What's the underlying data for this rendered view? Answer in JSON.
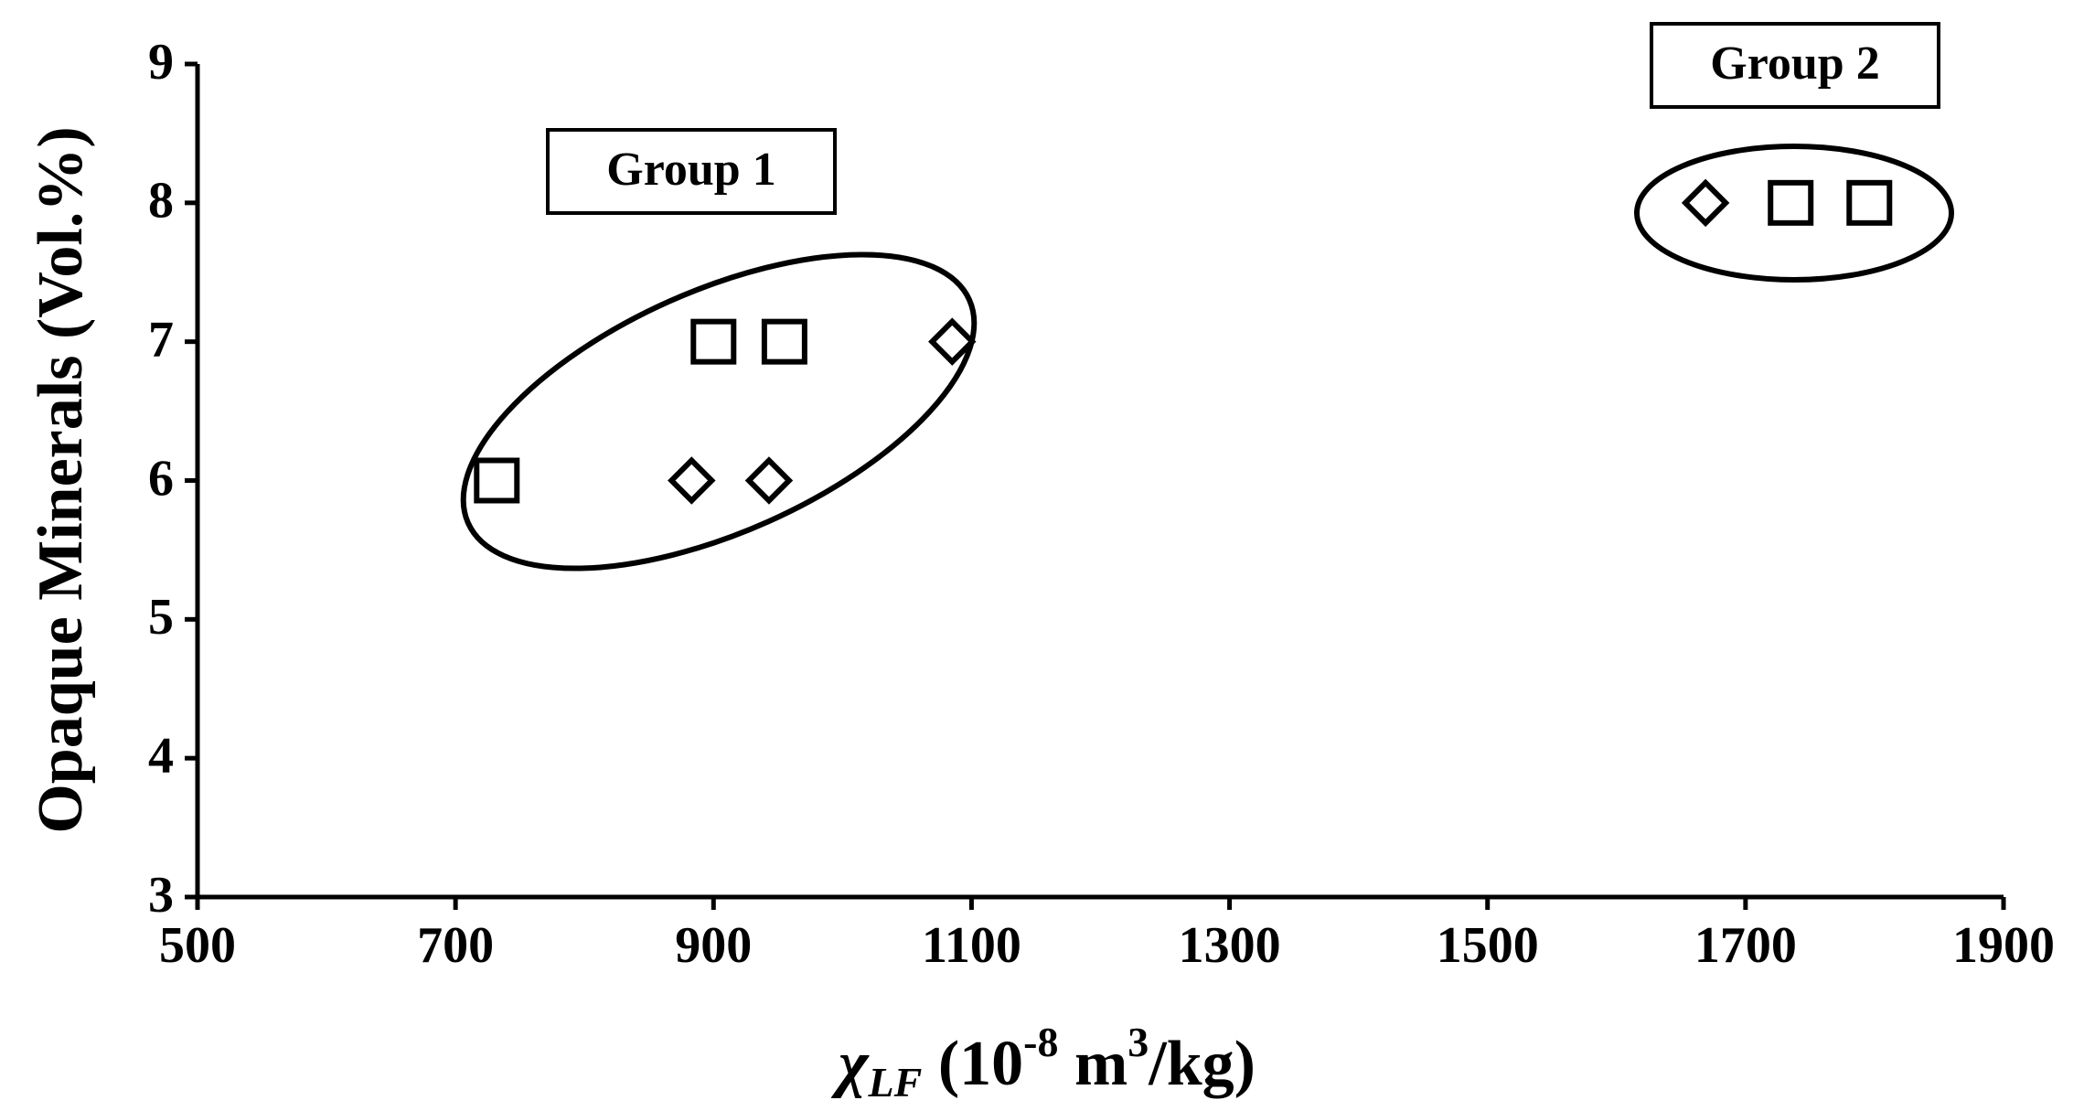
{
  "chart_data": {
    "type": "scatter",
    "x_label": [
      "χ",
      "LF",
      " (10",
      "-8",
      " m",
      "3",
      "/kg)"
    ],
    "y_label": "Opaque Minerals (Vol.%)",
    "xlim": [
      500,
      1900
    ],
    "xticks": [
      500,
      700,
      900,
      1100,
      1300,
      1500,
      1700,
      1900
    ],
    "ylim": [
      3,
      9
    ],
    "yticks": [
      3,
      4,
      5,
      6,
      7,
      8,
      9
    ],
    "color": "#000000",
    "series": [
      {
        "marker": "square",
        "x": [
          732,
          900,
          955,
          1735,
          1796
        ],
        "values": [
          6,
          7,
          7,
          8,
          8
        ]
      },
      {
        "marker": "diamond",
        "x": [
          883,
          943,
          1085,
          1669
        ],
        "values": [
          6,
          6,
          7,
          8
        ]
      }
    ],
    "annotations": [
      "Group 1",
      "Group 2"
    ]
  }
}
